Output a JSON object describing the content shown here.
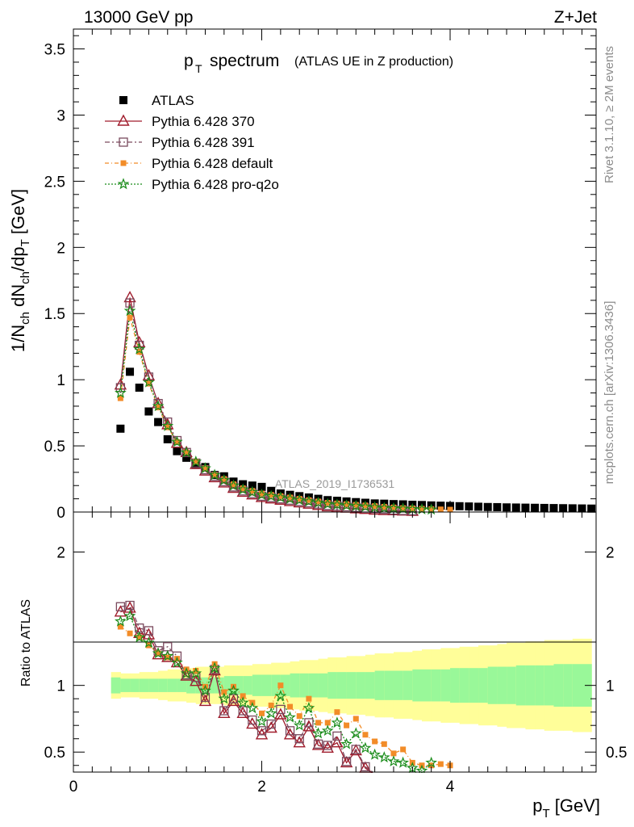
{
  "header": {
    "energy_label": "13000 GeV pp",
    "process_label": "Z+Jet",
    "title_main": "p",
    "title_sub": "T",
    "title_word": "spectrum",
    "title_paren": "(ATLAS UE in Z production)",
    "side_rivet": "Rivet 3.1.10, ≥ 2M events",
    "side_mcplots": "mcplots.cern.ch [arXiv:1306.3436]",
    "analysis_id": "ATLAS_2019_I1736531"
  },
  "axes": {
    "main_ylabel": "1/N_ch dN_ch/dp_T [GeV]",
    "ratio_ylabel": "Ratio to ATLAS",
    "xlabel": "p_T [GeV]"
  },
  "colors": {
    "data": "#000000",
    "p370": "#a01c2c",
    "p391": "#7a4a5e",
    "pdefault": "#f28c28",
    "pq2o": "#1a8c1a",
    "band_inner": "#99f899",
    "band_outer": "#fffe99"
  },
  "chart_data": [
    {
      "type": "scatter",
      "panel": "main",
      "xlim": [
        0,
        5.55
      ],
      "ylim": [
        0,
        3.65
      ],
      "x_ticks": [
        0,
        2,
        4
      ],
      "y_ticks": [
        0,
        0.5,
        1,
        1.5,
        2,
        2.5,
        3,
        3.5
      ],
      "x": [
        0.5,
        0.6,
        0.7,
        0.8,
        0.9,
        1.0,
        1.1,
        1.2,
        1.3,
        1.4,
        1.5,
        1.6,
        1.7,
        1.8,
        1.9,
        2.0,
        2.1,
        2.2,
        2.3,
        2.4,
        2.5,
        2.6,
        2.7,
        2.8,
        2.9,
        3.0,
        3.1,
        3.2,
        3.3,
        3.4,
        3.5,
        3.6,
        3.7,
        3.8,
        3.9,
        4.0,
        4.1,
        4.2,
        4.3,
        4.4,
        4.5,
        4.6,
        4.7,
        4.8,
        4.9,
        5.0,
        5.1,
        5.2,
        5.3,
        5.4,
        5.5
      ],
      "legend_position": "top-left",
      "series": [
        {
          "name": "ATLAS",
          "marker": "filled-square",
          "values": [
            0.63,
            1.06,
            0.94,
            0.76,
            0.68,
            0.55,
            0.46,
            0.41,
            0.36,
            0.34,
            0.28,
            0.27,
            0.23,
            0.21,
            0.2,
            0.19,
            0.16,
            0.14,
            0.13,
            0.12,
            0.11,
            0.1,
            0.09,
            0.085,
            0.08,
            0.075,
            0.07,
            0.065,
            0.063,
            0.06,
            0.058,
            0.055,
            0.053,
            0.05,
            0.048,
            0.046,
            0.044,
            0.042,
            0.04,
            0.038,
            0.037,
            0.035,
            0.034,
            0.033,
            0.032,
            0.031,
            0.03,
            0.029,
            0.028,
            0.027,
            0.026
          ]
        },
        {
          "name": "Pythia 6.428 370",
          "marker": "open-triangle",
          "values": [
            0.96,
            1.62,
            1.28,
            1.03,
            0.82,
            0.66,
            0.52,
            0.45,
            0.36,
            0.31,
            0.26,
            0.22,
            0.18,
            0.15,
            0.13,
            0.11,
            0.1,
            0.09,
            0.08,
            0.07,
            0.06,
            0.05,
            0.04,
            0.035,
            0.03,
            0.025,
            0.02,
            0.015,
            0.012,
            0.01,
            0.008,
            0.006
          ]
        },
        {
          "name": "Pythia 6.428 391",
          "marker": "open-square",
          "values": [
            0.94,
            1.58,
            1.26,
            1.02,
            0.82,
            0.68,
            0.54,
            0.45,
            0.37,
            0.32,
            0.27,
            0.23,
            0.19,
            0.16,
            0.14,
            0.12,
            0.11,
            0.1,
            0.09,
            0.08,
            0.07,
            0.06,
            0.05,
            0.045,
            0.04,
            0.035,
            0.03,
            0.025,
            0.02,
            0.015,
            0.012,
            0.01
          ]
        },
        {
          "name": "Pythia 6.428 default",
          "marker": "filled-square-small",
          "values": [
            0.86,
            1.47,
            1.21,
            0.97,
            0.79,
            0.64,
            0.53,
            0.45,
            0.38,
            0.33,
            0.28,
            0.25,
            0.21,
            0.18,
            0.16,
            0.14,
            0.13,
            0.12,
            0.11,
            0.1,
            0.09,
            0.08,
            0.07,
            0.065,
            0.06,
            0.055,
            0.05,
            0.045,
            0.04,
            0.035,
            0.03,
            0.028,
            0.025,
            0.022,
            0.02,
            0.018
          ]
        },
        {
          "name": "Pythia 6.428 pro-q2o",
          "marker": "open-star",
          "values": [
            0.9,
            1.52,
            1.23,
            0.98,
            0.8,
            0.65,
            0.53,
            0.45,
            0.38,
            0.33,
            0.28,
            0.24,
            0.2,
            0.17,
            0.15,
            0.13,
            0.12,
            0.11,
            0.1,
            0.09,
            0.08,
            0.07,
            0.06,
            0.055,
            0.05,
            0.045,
            0.04,
            0.035,
            0.03,
            0.028,
            0.025,
            0.022,
            0.02,
            0.018
          ]
        }
      ]
    },
    {
      "type": "scatter",
      "panel": "ratio",
      "xlim": [
        0,
        5.55
      ],
      "ylim": [
        0.35,
        2.3
      ],
      "x_ticks": [
        0,
        2,
        4
      ],
      "y_ticks": [
        0.5,
        1,
        2
      ],
      "x": [
        0.5,
        0.6,
        0.7,
        0.8,
        0.9,
        1.0,
        1.1,
        1.2,
        1.3,
        1.4,
        1.5,
        1.6,
        1.7,
        1.8,
        1.9,
        2.0,
        2.1,
        2.2,
        2.3,
        2.4,
        2.5,
        2.6,
        2.7,
        2.8,
        2.9,
        3.0,
        3.1,
        3.2,
        3.3,
        3.4,
        3.5,
        3.6,
        3.7,
        3.8,
        3.9,
        4.0
      ],
      "band_x": [
        0.45,
        0.55,
        0.65,
        0.75,
        0.85,
        0.95,
        1.05,
        1.15,
        1.25,
        1.35,
        1.45,
        1.55,
        1.65,
        1.75,
        1.85,
        1.95,
        2.05,
        2.15,
        2.25,
        2.35,
        2.45,
        2.55,
        2.65,
        2.75,
        2.85,
        2.95,
        3.05,
        3.15,
        3.25,
        3.35,
        3.45,
        3.55,
        3.65,
        3.75,
        3.85,
        3.95,
        4.05,
        4.15,
        4.25,
        4.35,
        4.45,
        4.55,
        4.65,
        4.75,
        4.85,
        4.95,
        5.05,
        5.15,
        5.25,
        5.35,
        5.45
      ],
      "band_inner": [
        0.06,
        0.05,
        0.05,
        0.05,
        0.05,
        0.05,
        0.05,
        0.05,
        0.06,
        0.06,
        0.06,
        0.06,
        0.07,
        0.07,
        0.07,
        0.08,
        0.08,
        0.08,
        0.08,
        0.09,
        0.09,
        0.09,
        0.09,
        0.1,
        0.1,
        0.1,
        0.1,
        0.1,
        0.11,
        0.11,
        0.11,
        0.11,
        0.12,
        0.12,
        0.12,
        0.12,
        0.13,
        0.13,
        0.13,
        0.13,
        0.14,
        0.14,
        0.14,
        0.15,
        0.15,
        0.15,
        0.15,
        0.16,
        0.16,
        0.16,
        0.16
      ],
      "band_outer": [
        0.1,
        0.09,
        0.09,
        0.1,
        0.1,
        0.11,
        0.12,
        0.12,
        0.13,
        0.14,
        0.14,
        0.14,
        0.15,
        0.15,
        0.15,
        0.16,
        0.16,
        0.17,
        0.17,
        0.18,
        0.19,
        0.19,
        0.2,
        0.21,
        0.21,
        0.22,
        0.22,
        0.23,
        0.24,
        0.24,
        0.25,
        0.25,
        0.26,
        0.27,
        0.27,
        0.28,
        0.28,
        0.29,
        0.29,
        0.3,
        0.3,
        0.31,
        0.32,
        0.32,
        0.33,
        0.33,
        0.34,
        0.34,
        0.34,
        0.35,
        0.35
      ],
      "series": [
        {
          "name": "Pythia 6.428 370",
          "values": [
            1.55,
            1.58,
            1.39,
            1.38,
            1.23,
            1.21,
            1.17,
            1.07,
            1.03,
            0.88,
            1.11,
            0.79,
            0.88,
            0.79,
            0.71,
            0.63,
            0.68,
            0.78,
            0.63,
            0.57,
            0.69,
            0.55,
            0.53,
            0.57,
            0.42,
            0.51,
            0.38,
            0.33,
            0.28
          ]
        },
        {
          "name": "Pythia 6.428 391",
          "values": [
            1.59,
            1.6,
            1.43,
            1.41,
            1.26,
            1.29,
            1.22,
            1.08,
            1.06,
            0.91,
            1.12,
            0.81,
            0.9,
            0.81,
            0.74,
            0.66,
            0.71,
            0.82,
            0.66,
            0.6,
            0.72,
            0.56,
            0.55,
            0.62,
            0.43,
            0.52,
            0.39,
            0.34,
            0.3
          ]
        },
        {
          "name": "Pythia 6.428 default",
          "values": [
            1.44,
            1.39,
            1.36,
            1.3,
            1.24,
            1.21,
            1.2,
            1.12,
            1.11,
            0.99,
            1.16,
            0.95,
            0.99,
            0.92,
            0.87,
            0.79,
            0.85,
            1.0,
            0.84,
            0.77,
            0.9,
            0.72,
            0.72,
            0.8,
            0.7,
            0.75,
            0.63,
            0.58,
            0.56,
            0.49,
            0.52,
            0.42,
            0.4,
            0.4,
            0.41,
            0.4
          ]
        },
        {
          "name": "Pythia 6.428 pro-q2o",
          "values": [
            1.48,
            1.52,
            1.36,
            1.32,
            1.24,
            1.22,
            1.17,
            1.09,
            1.09,
            0.96,
            1.13,
            0.9,
            0.96,
            0.87,
            0.83,
            0.73,
            0.79,
            0.92,
            0.76,
            0.7,
            0.83,
            0.64,
            0.66,
            0.72,
            0.56,
            0.64,
            0.53,
            0.48,
            0.46,
            0.43,
            0.42,
            0.38,
            0.36,
            0.42
          ]
        }
      ]
    }
  ]
}
